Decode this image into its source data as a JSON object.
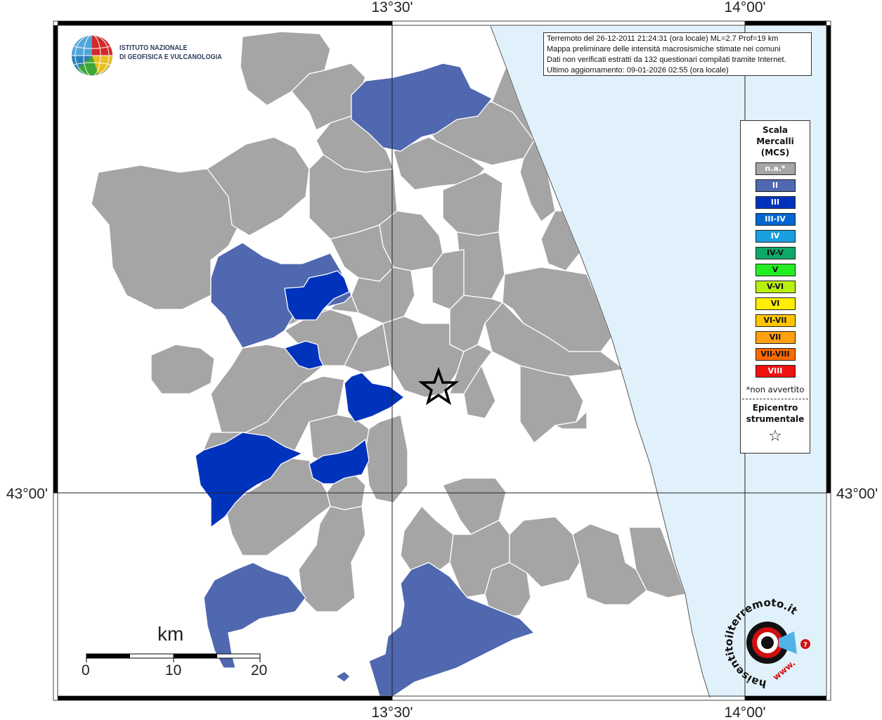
{
  "map": {
    "coords": {
      "top_left": "13°30'",
      "top_right": "14°00'",
      "bottom_left": "13°30'",
      "bottom_right": "14°00'",
      "left": "43°00'",
      "right": "43°00'"
    },
    "colors": {
      "sea": "#e1f1fb",
      "na": "#a5a5a5",
      "II": "#4f68b0",
      "III": "#0033bb"
    }
  },
  "info": {
    "line1": "Terremoto del 26-12-2011 21:24:31 (ora locale) ML=2.7 Prof=19 km",
    "line2": "Mappa preliminare delle intensità macrosismiche stimate nei comuni",
    "line3": "Dati non verificati estratti da 132 questionari compilati tramite Internet.",
    "line4": "Ultimo aggiornamento: 09-01-2026 02:55 (ora locale)"
  },
  "logo": {
    "line1": "ISTITUTO NAZIONALE",
    "line2": "DI GEOFISICA E VULCANOLOGIA"
  },
  "legend": {
    "title1": "Scala",
    "title2": "Mercalli",
    "title3": "(MCS)",
    "items": [
      {
        "label": "n.a.*",
        "color": "#a5a5a5"
      },
      {
        "label": "II",
        "color": "#4f68b0"
      },
      {
        "label": "III",
        "color": "#0033bb"
      },
      {
        "label": "III-IV",
        "color": "#0066d0"
      },
      {
        "label": "IV",
        "color": "#1aa0e0"
      },
      {
        "label": "IV-V",
        "color": "#0fa86a"
      },
      {
        "label": "V",
        "color": "#22ee22"
      },
      {
        "label": "V-VI",
        "color": "#b8ee10"
      },
      {
        "label": "VI",
        "color": "#ffee00"
      },
      {
        "label": "VI-VII",
        "color": "#ffc400"
      },
      {
        "label": "VII",
        "color": "#ffa010"
      },
      {
        "label": "VII-VIII",
        "color": "#ff6a00"
      },
      {
        "label": "VIII",
        "color": "#ee1111"
      }
    ],
    "note": "*non avvertito",
    "epi1": "Epicentro",
    "epi2": "strumentale",
    "star": "☆"
  },
  "scalebar": {
    "title": "km",
    "labels": [
      "0",
      "10",
      "20"
    ]
  },
  "hsw": {
    "text": "haisentitoilterremoto.it",
    "prefix": "www.",
    "mark": "?"
  }
}
